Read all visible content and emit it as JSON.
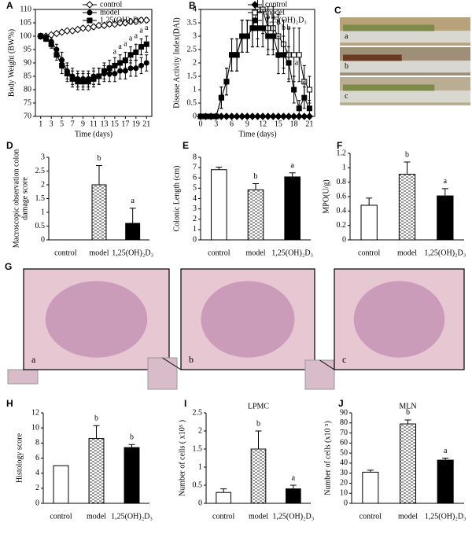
{
  "chart_data": [
    {
      "panel": "A",
      "type": "line",
      "ylabel": "Body Weight (BW%)",
      "xlabel": "Time (days)",
      "x": [
        1,
        2,
        3,
        4,
        5,
        6,
        7,
        8,
        9,
        10,
        11,
        12,
        13,
        14,
        15,
        16,
        17,
        18,
        19,
        20,
        21
      ],
      "xlim": [
        0,
        22
      ],
      "xticks": [
        1,
        3,
        5,
        7,
        9,
        11,
        13,
        15,
        17,
        19,
        21
      ],
      "ylim": [
        70,
        110
      ],
      "yticks": [
        70,
        75,
        80,
        85,
        90,
        95,
        100,
        105,
        110
      ],
      "legend": "upper right",
      "series": [
        {
          "name": "control",
          "color": "#000000",
          "marker": "diamond",
          "filled": false,
          "values": [
            100,
            100,
            100.5,
            101,
            101.5,
            102,
            102,
            102.5,
            103,
            103,
            103.5,
            104,
            104,
            104.5,
            104.5,
            105,
            105,
            105.5,
            105.5,
            106,
            106
          ],
          "errors": [
            0.5,
            0.5,
            0.5,
            0.6,
            0.6,
            0.7,
            0.7,
            0.7,
            0.8,
            0.8,
            0.8,
            0.8,
            0.8,
            0.8,
            0.8,
            0.9,
            0.9,
            0.9,
            0.9,
            0.9,
            0.9
          ]
        },
        {
          "name": "model",
          "color": "#000000",
          "marker": "circle",
          "filled": true,
          "values": [
            100,
            99.5,
            98,
            95,
            91,
            87,
            85,
            84,
            84,
            84,
            85,
            85,
            86,
            86,
            86,
            87,
            87,
            88,
            88,
            89,
            90
          ],
          "errors": [
            1,
            1,
            1.5,
            2,
            3,
            3,
            3,
            3,
            3,
            3,
            3,
            3,
            3,
            3,
            3,
            3,
            3,
            3,
            3,
            3,
            3
          ]
        },
        {
          "name": "1,25(OH)₂D₃",
          "color": "#000000",
          "marker": "square",
          "filled": true,
          "values": [
            100,
            99,
            97,
            93,
            89,
            86,
            84,
            83,
            83,
            83,
            84,
            85,
            87,
            88,
            89,
            90,
            91,
            93,
            94,
            96,
            97
          ],
          "errors": [
            1,
            1,
            1.5,
            2,
            3,
            3,
            3,
            3,
            3,
            3,
            3,
            3,
            3,
            3,
            3,
            3,
            3,
            3,
            3,
            3,
            3
          ]
        }
      ],
      "annotations": [
        {
          "text": "a",
          "x": 15,
          "y": 94
        },
        {
          "text": "a",
          "x": 16,
          "y": 96
        },
        {
          "text": "a",
          "x": 17,
          "y": 97
        },
        {
          "text": "a",
          "x": 18,
          "y": 99
        },
        {
          "text": "a",
          "x": 19,
          "y": 100
        },
        {
          "text": "a",
          "x": 20,
          "y": 102
        },
        {
          "text": "a",
          "x": 21,
          "y": 103
        }
      ]
    },
    {
      "panel": "B",
      "type": "line",
      "ylabel": "Disease Activity Index(DAI)",
      "xlabel": "Time (days)",
      "x": [
        0,
        1,
        2,
        3,
        4,
        5,
        6,
        7,
        8,
        9,
        10,
        11,
        12,
        13,
        14,
        15,
        16,
        17,
        18,
        19,
        20,
        21
      ],
      "xlim": [
        0,
        22
      ],
      "xticks": [
        0,
        3,
        6,
        9,
        12,
        15,
        18,
        21
      ],
      "ylim": [
        0,
        4
      ],
      "yticks": [
        0,
        0.5,
        1,
        1.5,
        2,
        2.5,
        3,
        3.5,
        4
      ],
      "legend": "upper right",
      "series": [
        {
          "name": "control",
          "color": "#000000",
          "marker": "diamond",
          "filled": true,
          "values": [
            0,
            0,
            0,
            0,
            0,
            0,
            0,
            0,
            0,
            0,
            0,
            0,
            0,
            0,
            0,
            0,
            0,
            0,
            0,
            0,
            0,
            0
          ],
          "errors": [
            0,
            0,
            0,
            0,
            0,
            0,
            0,
            0,
            0,
            0,
            0,
            0,
            0,
            0,
            0,
            0,
            0,
            0,
            0,
            0,
            0,
            0
          ]
        },
        {
          "name": "model",
          "color": "#000000",
          "marker": "square",
          "filled": false,
          "values": [
            0,
            0,
            0,
            0,
            0.7,
            1.3,
            2.3,
            2.3,
            3,
            3,
            3.3,
            4,
            4,
            3.3,
            3.3,
            3,
            2.7,
            2.3,
            2.3,
            2.3,
            1.3,
            1
          ],
          "errors": [
            0,
            0,
            0,
            0,
            0.4,
            0.5,
            0.6,
            0.6,
            0.6,
            0.6,
            0.7,
            1.1,
            0.9,
            0.8,
            0.8,
            0.8,
            0.9,
            1,
            1,
            1,
            0.6,
            0.5
          ]
        },
        {
          "name": "1,25(OH)₂D₃",
          "color": "#000000",
          "marker": "square",
          "filled": true,
          "values": [
            0,
            0,
            0,
            0,
            0.7,
            1.3,
            2.3,
            2.3,
            3,
            3,
            3.3,
            3.3,
            3.3,
            3,
            3,
            2.3,
            2.3,
            2,
            1,
            0.3,
            0.7,
            0.3
          ],
          "errors": [
            0,
            0,
            0,
            0,
            0.4,
            0.5,
            0.6,
            0.6,
            0.6,
            0.6,
            0.7,
            0.7,
            0.7,
            0.7,
            0.7,
            0.7,
            0.7,
            0.6,
            0.5,
            0.3,
            0.4,
            0.3
          ]
        }
      ],
      "annotations": [
        {
          "text": "b",
          "x": 11,
          "y": 4.6
        },
        {
          "text": "b",
          "x": 12,
          "y": 4.6
        },
        {
          "text": "b",
          "x": 13,
          "y": 3.7
        },
        {
          "text": "b",
          "x": 14,
          "y": 3.7
        },
        {
          "text": "b",
          "x": 15,
          "y": 3.5
        },
        {
          "text": "b",
          "x": 16,
          "y": 3.3
        },
        {
          "text": "b",
          "x": 17,
          "y": 3.3
        },
        {
          "text": "a",
          "x": 16.5,
          "y": 2.4
        },
        {
          "text": "a",
          "x": 18.5,
          "y": 2.0
        },
        {
          "text": "a",
          "x": 20,
          "y": 1.3
        }
      ]
    },
    {
      "panel": "C",
      "type": "image",
      "labels": [
        "a",
        "b",
        "c"
      ]
    },
    {
      "panel": "D",
      "type": "bar",
      "ylabel": [
        "Macroscopic observation colon",
        "damage score"
      ],
      "categories": [
        "control",
        "model",
        "1,25(OH)₂D₃"
      ],
      "values": [
        0,
        2.0,
        0.6
      ],
      "errors": [
        0,
        0.7,
        0.55
      ],
      "letters": [
        null,
        "b",
        "a"
      ],
      "colors": [
        "#ffffff",
        "#ffffff",
        "#000000"
      ],
      "hatch": [
        false,
        true,
        false
      ],
      "ylim": [
        0,
        3
      ],
      "yticks": [
        0,
        0.5,
        1,
        1.5,
        2,
        2.5,
        3
      ]
    },
    {
      "panel": "E",
      "type": "bar",
      "ylabel": [
        "Colonic Length (cm)"
      ],
      "categories": [
        "control",
        "model",
        "1,25(OH)₂D₃"
      ],
      "values": [
        6.8,
        4.85,
        6.1
      ],
      "errors": [
        0.25,
        0.6,
        0.4
      ],
      "letters": [
        null,
        "b",
        "a"
      ],
      "colors": [
        "#ffffff",
        "#ffffff",
        "#000000"
      ],
      "hatch": [
        false,
        true,
        false
      ],
      "ylim": [
        0,
        8
      ],
      "yticks": [
        0,
        1,
        2,
        3,
        4,
        5,
        6,
        7,
        8
      ]
    },
    {
      "panel": "F",
      "type": "bar",
      "ylabel": [
        "MPO(U/g)"
      ],
      "categories": [
        "control",
        "model",
        "1,25(OH)₂D₃"
      ],
      "values": [
        0.48,
        0.91,
        0.61
      ],
      "errors": [
        0.1,
        0.17,
        0.1
      ],
      "letters": [
        null,
        "b",
        "a"
      ],
      "colors": [
        "#ffffff",
        "#ffffff",
        "#000000"
      ],
      "hatch": [
        false,
        true,
        false
      ],
      "ylim": [
        0,
        1.2
      ],
      "yticks": [
        0,
        0.2,
        0.4,
        0.6,
        0.8,
        1,
        1.2
      ]
    },
    {
      "panel": "G",
      "type": "image",
      "labels": [
        "a",
        "b",
        "c"
      ]
    },
    {
      "panel": "H",
      "type": "bar",
      "ylabel": [
        "Histology score"
      ],
      "categories": [
        "control",
        "model",
        "1,25(OH)₂D₃"
      ],
      "values": [
        5,
        8.6,
        7.4
      ],
      "errors": [
        0,
        1.7,
        0.4
      ],
      "letters": [
        null,
        "b",
        "b"
      ],
      "colors": [
        "#ffffff",
        "#ffffff",
        "#000000"
      ],
      "hatch": [
        false,
        true,
        false
      ],
      "ylim": [
        0,
        12
      ],
      "yticks": [
        0,
        2,
        4,
        6,
        8,
        10,
        12
      ]
    },
    {
      "panel": "I",
      "type": "bar",
      "title": "LPMC",
      "ylabel": [
        "Number of cells ( x10⁵ )"
      ],
      "categories": [
        "control",
        "model",
        "1,25(OH)₂D₃"
      ],
      "values": [
        0.3,
        1.5,
        0.4
      ],
      "errors": [
        0.1,
        0.5,
        0.1
      ],
      "letters": [
        null,
        "b",
        "a"
      ],
      "colors": [
        "#ffffff",
        "#ffffff",
        "#000000"
      ],
      "hatch": [
        false,
        true,
        false
      ],
      "ylim": [
        0,
        2.5
      ],
      "yticks": [
        0,
        0.5,
        1,
        1.5,
        2,
        2.5
      ]
    },
    {
      "panel": "J",
      "type": "bar",
      "title": "MLN",
      "ylabel": [
        "Number of cells (x10 ⁵)"
      ],
      "categories": [
        "control",
        "model",
        "1,25(OH)₂D₃"
      ],
      "values": [
        31,
        79,
        43
      ],
      "errors": [
        2,
        4,
        2
      ],
      "letters": [
        null,
        "b",
        "a"
      ],
      "colors": [
        "#ffffff",
        "#ffffff",
        "#000000"
      ],
      "hatch": [
        false,
        true,
        false
      ],
      "ylim": [
        0,
        90
      ],
      "yticks": [
        0,
        10,
        20,
        30,
        40,
        50,
        60,
        70,
        80,
        90
      ]
    }
  ]
}
